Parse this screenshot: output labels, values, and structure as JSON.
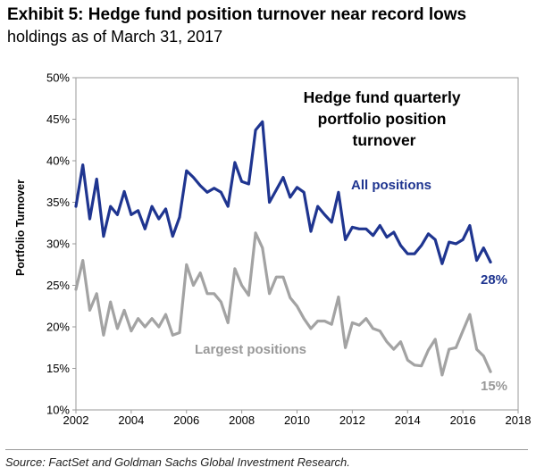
{
  "title": "Exhibit 5: Hedge fund position turnover near record lows",
  "subtitle": "holdings as of March 31, 2017",
  "source": "Source: FactSet and Goldman Sachs Global Investment Research.",
  "colors": {
    "all_positions": "#1f3590",
    "largest_positions": "#a3a3a3",
    "axis": "#000000"
  },
  "chart_data": {
    "type": "line",
    "title": "Hedge fund quarterly portfolio position turnover",
    "title_lines": [
      "Hedge fund quarterly",
      "portfolio position",
      "turnover"
    ],
    "ylabel": "Portfolio Turnover",
    "xlabel": "",
    "xlim": [
      2002,
      2018
    ],
    "ylim": [
      10,
      50
    ],
    "grid": false,
    "x_ticks": [
      "2002",
      "2004",
      "2006",
      "2008",
      "2010",
      "2012",
      "2014",
      "2016",
      "2018"
    ],
    "y_ticks": [
      "10%",
      "15%",
      "20%",
      "25%",
      "30%",
      "35%",
      "40%",
      "45%",
      "50%"
    ],
    "series": [
      {
        "name": "All positions",
        "end_label": "28%",
        "x": [
          2002.0,
          2002.25,
          2002.5,
          2002.75,
          2003.0,
          2003.25,
          2003.5,
          2003.75,
          2004.0,
          2004.25,
          2004.5,
          2004.75,
          2005.0,
          2005.25,
          2005.5,
          2005.75,
          2006.0,
          2006.25,
          2006.5,
          2006.75,
          2007.0,
          2007.25,
          2007.5,
          2007.75,
          2008.0,
          2008.25,
          2008.5,
          2008.75,
          2009.0,
          2009.25,
          2009.5,
          2009.75,
          2010.0,
          2010.25,
          2010.5,
          2010.75,
          2011.0,
          2011.25,
          2011.5,
          2011.75,
          2012.0,
          2012.25,
          2012.5,
          2012.75,
          2013.0,
          2013.25,
          2013.5,
          2013.75,
          2014.0,
          2014.25,
          2014.5,
          2014.75,
          2015.0,
          2015.25,
          2015.5,
          2015.75,
          2016.0,
          2016.25,
          2016.5,
          2016.75,
          2017.0
        ],
        "values": [
          34.5,
          39.5,
          33.0,
          37.8,
          30.9,
          34.5,
          33.5,
          36.3,
          33.5,
          34.0,
          31.8,
          34.5,
          33.0,
          34.2,
          30.9,
          33.2,
          38.8,
          38.0,
          37.0,
          36.2,
          36.7,
          36.2,
          34.5,
          39.8,
          37.5,
          37.2,
          43.7,
          44.7,
          35.0,
          36.5,
          38.0,
          35.6,
          36.8,
          36.2,
          31.5,
          34.5,
          33.5,
          32.6,
          36.2,
          30.5,
          32.0,
          31.8,
          31.8,
          31.0,
          32.2,
          30.8,
          31.4,
          29.8,
          28.8,
          28.8,
          29.8,
          31.2,
          30.5,
          27.6,
          30.2,
          30.0,
          30.5,
          32.2,
          28.0,
          29.5,
          27.8
        ]
      },
      {
        "name": "Largest positions",
        "end_label": "15%",
        "x": [
          2002.0,
          2002.25,
          2002.5,
          2002.75,
          2003.0,
          2003.25,
          2003.5,
          2003.75,
          2004.0,
          2004.25,
          2004.5,
          2004.75,
          2005.0,
          2005.25,
          2005.5,
          2005.75,
          2006.0,
          2006.25,
          2006.5,
          2006.75,
          2007.0,
          2007.25,
          2007.5,
          2007.75,
          2008.0,
          2008.25,
          2008.5,
          2008.75,
          2009.0,
          2009.25,
          2009.5,
          2009.75,
          2010.0,
          2010.25,
          2010.5,
          2010.75,
          2011.0,
          2011.25,
          2011.5,
          2011.75,
          2012.0,
          2012.25,
          2012.5,
          2012.75,
          2013.0,
          2013.25,
          2013.5,
          2013.75,
          2014.0,
          2014.25,
          2014.5,
          2014.75,
          2015.0,
          2015.25,
          2015.5,
          2015.75,
          2016.0,
          2016.25,
          2016.5,
          2016.75,
          2017.0
        ],
        "values": [
          24.5,
          28.0,
          22.0,
          24.0,
          19.0,
          23.0,
          19.8,
          22.0,
          19.5,
          21.0,
          20.0,
          21.0,
          20.0,
          21.5,
          19.0,
          19.3,
          27.5,
          25.0,
          26.5,
          24.0,
          24.0,
          23.0,
          20.5,
          27.0,
          25.0,
          23.8,
          31.3,
          29.5,
          24.0,
          26.0,
          26.0,
          23.5,
          22.5,
          21.0,
          19.8,
          20.7,
          20.7,
          20.3,
          23.6,
          17.5,
          20.5,
          20.2,
          21.0,
          19.8,
          19.5,
          18.2,
          17.3,
          18.2,
          16.0,
          15.4,
          15.3,
          17.2,
          18.5,
          14.2,
          17.3,
          17.5,
          19.5,
          21.5,
          17.3,
          16.5,
          14.6
        ]
      }
    ],
    "annotations": [
      {
        "text": "All positions",
        "series": 0
      },
      {
        "text": "Largest positions",
        "series": 1
      }
    ]
  }
}
